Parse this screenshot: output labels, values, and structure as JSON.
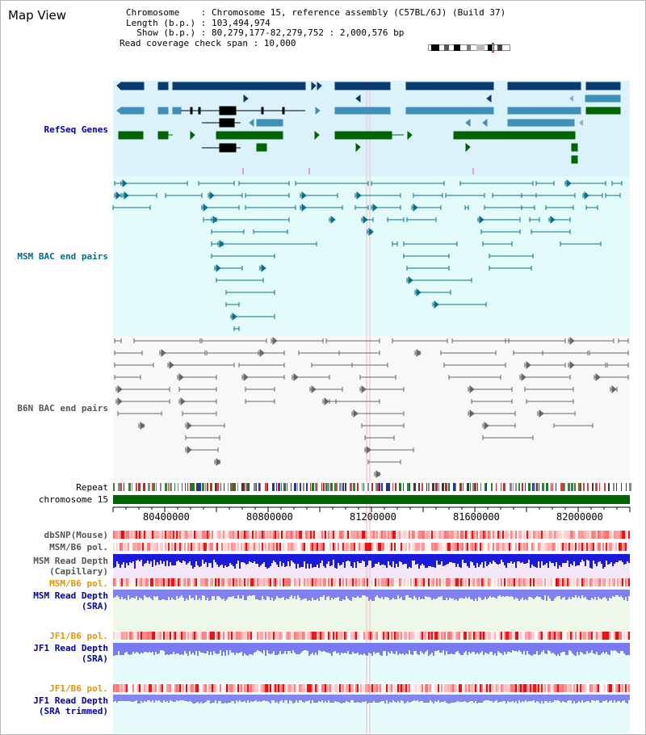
{
  "panel": {
    "title": "Map View"
  },
  "header": {
    "chromosome_line": "Chromosome    : Chromosome 15, reference assembly (C57BL/6J) (Build 37)",
    "length_line": "Length (b.p.) : 103,494,974",
    "show_line": "  Show (b.p.) : 80,279,177-82,279,752 : 2,000,576 bp",
    "coverage_line": "Read coverage check span : 10,000"
  },
  "tracks": {
    "refseq": "RefSeq Genes",
    "msm_bac": "MSM BAC end pairs",
    "b6n_bac": "B6N BAC end pairs",
    "repeat": "Repeat",
    "chromosome": "chromosome 15",
    "dbsnp": "dbSNP(Mouse)",
    "msm_b6_pol_1": "MSM/B6 pol.",
    "msm_read_depth_cap": "MSM Read Depth\n(Capillary)",
    "msm_b6_pol_2": "MSM/B6 pol.",
    "msm_read_depth_sra": "MSM Read Depth\n(SRA)",
    "jf1_b6_pol_1": "JF1/B6 pol.",
    "jf1_read_depth_sra": "JF1 Read Depth\n(SRA)",
    "jf1_b6_pol_2": "JF1/B6 pol.",
    "jf1_read_depth_trim": "JF1 Read Depth\n(SRA trimmed)"
  },
  "axis": {
    "ticks": [
      "80400000",
      "80800000",
      "81200000",
      "81600000",
      "82000000"
    ]
  },
  "colors": {
    "refseq_dark": "#0b3a6e",
    "refseq_mid": "#3f8fb8",
    "refseq_green": "#006400",
    "msm_bac": "#0a6f8a",
    "b6n_bac": "#666666",
    "label_blue": "#0000aa",
    "label_teal": "#006f8a",
    "label_gray": "#555555",
    "label_orange": "#e69500"
  }
}
